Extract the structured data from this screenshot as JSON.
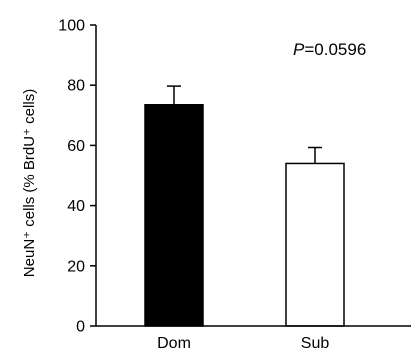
{
  "chart_data": {
    "type": "bar",
    "categories": [
      "Dom",
      "Sub"
    ],
    "values": [
      73.5,
      54
    ],
    "errors": [
      6.2,
      5.3
    ],
    "bar_fills": [
      "#000000",
      "#ffffff"
    ],
    "ylabel": "NeuN⁺ cells (% BrdU⁺ cells)",
    "ylim": [
      0,
      100
    ],
    "yticks": [
      "0",
      "20",
      "40",
      "60",
      "80",
      "100"
    ],
    "annotation": {
      "italic": "P",
      "text": "=0.0596"
    },
    "grid": false
  }
}
